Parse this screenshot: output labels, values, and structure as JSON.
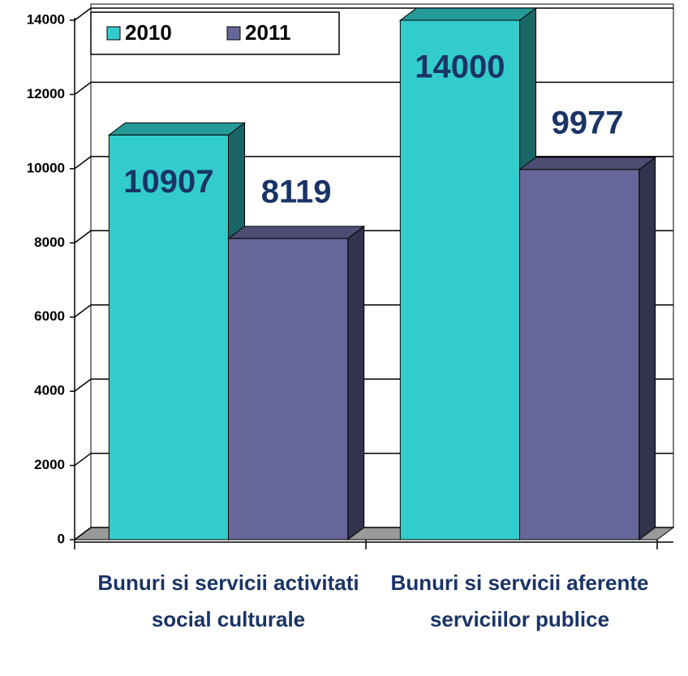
{
  "chart_data": {
    "type": "bar3d",
    "categories": [
      "Bunuri si servicii activitati social culturale",
      "Bunuri si servicii aferente serviciilor publice"
    ],
    "series": [
      {
        "name": "2010",
        "color": "#33cccc",
        "values": [
          10907,
          14000
        ]
      },
      {
        "name": "2011",
        "color": "#666699",
        "values": [
          8119,
          9977
        ]
      }
    ],
    "ylim": [
      0,
      14000
    ],
    "yticks": [
      0,
      2000,
      4000,
      6000,
      8000,
      10000,
      12000,
      14000
    ],
    "grid": true,
    "legend": "top-left"
  }
}
